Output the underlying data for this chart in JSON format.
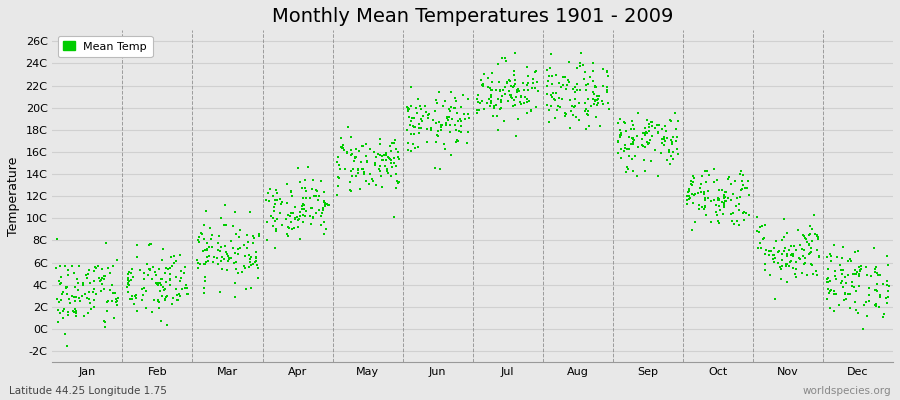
{
  "title": "Monthly Mean Temperatures 1901 - 2009",
  "ylabel": "Temperature",
  "xlabel_bottom_left": "Latitude 44.25 Longitude 1.75",
  "xlabel_bottom_right": "worldspecies.org",
  "legend_label": "Mean Temp",
  "dot_color": "#00cc00",
  "background_color": "#e8e8e8",
  "plot_bg_color": "#e8e8e8",
  "ylim": [
    -3,
    27
  ],
  "yticks": [
    -2,
    0,
    2,
    4,
    6,
    8,
    10,
    12,
    14,
    16,
    18,
    20,
    22,
    24,
    26
  ],
  "ytick_labels": [
    "-2C",
    "0C",
    "2C",
    "4C",
    "6C",
    "8C",
    "10C",
    "12C",
    "14C",
    "16C",
    "18C",
    "20C",
    "22C",
    "24C",
    "26C"
  ],
  "months": [
    "Jan",
    "Feb",
    "Mar",
    "Apr",
    "May",
    "Jun",
    "Jul",
    "Aug",
    "Sep",
    "Oct",
    "Nov",
    "Dec"
  ],
  "month_means": [
    3.2,
    4.0,
    7.0,
    11.0,
    15.0,
    18.5,
    21.5,
    21.0,
    17.0,
    12.0,
    7.0,
    4.2
  ],
  "month_stds": [
    1.8,
    1.7,
    1.5,
    1.4,
    1.4,
    1.4,
    1.4,
    1.5,
    1.4,
    1.4,
    1.5,
    1.6
  ],
  "n_years": 109,
  "seed": 42,
  "marker_size": 3,
  "grid_color": "#d0d0d0",
  "vline_color": "#888888",
  "figwidth": 9.0,
  "figheight": 4.0,
  "title_fontsize": 14,
  "axis_label_fontsize": 9,
  "tick_fontsize": 8,
  "legend_fontsize": 8
}
